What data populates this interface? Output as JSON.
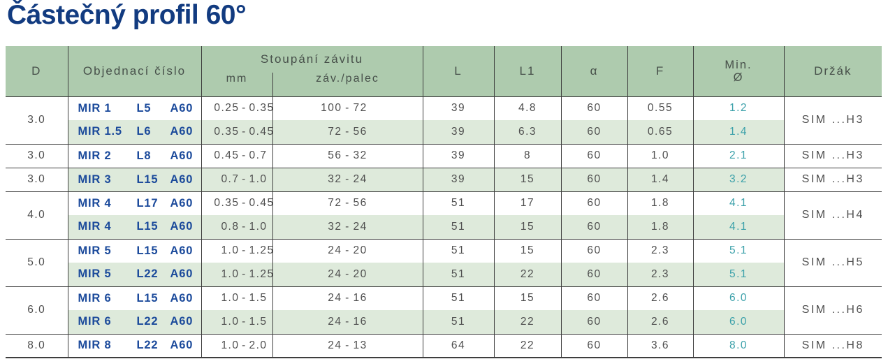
{
  "page": {
    "title": "Částečný profil 60°"
  },
  "colors": {
    "title_navy": "#123b80",
    "order_number_blue": "#1b4a9b",
    "header_green": "#aecbae",
    "row_alt_green": "#deeadb",
    "min_diameter_teal": "#3aa0a9",
    "body_text_gray": "#4e4e4e",
    "rule_dark": "#3e3e3e"
  },
  "table": {
    "headers": {
      "d": "D",
      "order": "Objednací číslo",
      "pitch_group": "Stoupání závitu",
      "pitch_mm": "mm",
      "pitch_tpi": "záv./palec",
      "l": "L",
      "l1": "L1",
      "alpha": "α",
      "f": "F",
      "min_dia_line1": "Min.",
      "min_dia_line2": "Ø",
      "holder": "Držák"
    },
    "range_dash": "-",
    "groups": [
      {
        "d": "3.0",
        "holder": "SIM ...H3",
        "rows": [
          {
            "order": [
              "MIR 1",
              "L5",
              "A60"
            ],
            "pitch_mm": [
              "0.25",
              "0.35"
            ],
            "pitch_tpi": [
              "100",
              "72"
            ],
            "l": "39",
            "l1": "4.8",
            "alpha": "60",
            "f": "0.55",
            "min_dia": "1.2"
          },
          {
            "order": [
              "MIR 1.5",
              "L6",
              "A60"
            ],
            "pitch_mm": [
              "0.35",
              "0.45"
            ],
            "pitch_tpi": [
              "72",
              "56"
            ],
            "l": "39",
            "l1": "6.3",
            "alpha": "60",
            "f": "0.65",
            "min_dia": "1.4"
          }
        ]
      },
      {
        "d": "3.0",
        "holder": "SIM ...H3",
        "rows": [
          {
            "order": [
              "MIR 2",
              "L8",
              "A60"
            ],
            "pitch_mm": [
              "0.45",
              "0.7"
            ],
            "pitch_tpi": [
              "56",
              "32"
            ],
            "l": "39",
            "l1": "8",
            "alpha": "60",
            "f": "1.0",
            "min_dia": "2.1"
          }
        ]
      },
      {
        "d": "3.0",
        "holder": "SIM ...H3",
        "rows": [
          {
            "order": [
              "MIR 3",
              "L15",
              "A60"
            ],
            "pitch_mm": [
              "0.7",
              "1.0"
            ],
            "pitch_tpi": [
              "32",
              "24"
            ],
            "l": "39",
            "l1": "15",
            "alpha": "60",
            "f": "1.4",
            "min_dia": "3.2"
          }
        ]
      },
      {
        "d": "4.0",
        "holder": "SIM ...H4",
        "rows": [
          {
            "order": [
              "MIR 4",
              "L17",
              "A60"
            ],
            "pitch_mm": [
              "0.35",
              "0.45"
            ],
            "pitch_tpi": [
              "72",
              "56"
            ],
            "l": "51",
            "l1": "17",
            "alpha": "60",
            "f": "1.8",
            "min_dia": "4.1"
          },
          {
            "order": [
              "MIR 4",
              "L15",
              "A60"
            ],
            "pitch_mm": [
              "0.8",
              "1.0"
            ],
            "pitch_tpi": [
              "32",
              "24"
            ],
            "l": "51",
            "l1": "15",
            "alpha": "60",
            "f": "1.8",
            "min_dia": "4.1"
          }
        ]
      },
      {
        "d": "5.0",
        "holder": "SIM ...H5",
        "rows": [
          {
            "order": [
              "MIR 5",
              "L15",
              "A60"
            ],
            "pitch_mm": [
              "1.0",
              "1.25"
            ],
            "pitch_tpi": [
              "24",
              "20"
            ],
            "l": "51",
            "l1": "15",
            "alpha": "60",
            "f": "2.3",
            "min_dia": "5.1"
          },
          {
            "order": [
              "MIR 5",
              "L22",
              "A60"
            ],
            "pitch_mm": [
              "1.0",
              "1.25"
            ],
            "pitch_tpi": [
              "24",
              "20"
            ],
            "l": "51",
            "l1": "22",
            "alpha": "60",
            "f": "2.3",
            "min_dia": "5.1"
          }
        ]
      },
      {
        "d": "6.0",
        "holder": "SIM ...H6",
        "rows": [
          {
            "order": [
              "MIR 6",
              "L15",
              "A60"
            ],
            "pitch_mm": [
              "1.0",
              "1.5"
            ],
            "pitch_tpi": [
              "24",
              "16"
            ],
            "l": "51",
            "l1": "15",
            "alpha": "60",
            "f": "2.6",
            "min_dia": "6.0"
          },
          {
            "order": [
              "MIR 6",
              "L22",
              "A60"
            ],
            "pitch_mm": [
              "1.0",
              "1.5"
            ],
            "pitch_tpi": [
              "24",
              "16"
            ],
            "l": "51",
            "l1": "22",
            "alpha": "60",
            "f": "2.6",
            "min_dia": "6.0"
          }
        ]
      },
      {
        "d": "8.0",
        "holder": "SIM ...H8",
        "rows": [
          {
            "order": [
              "MIR 8",
              "L22",
              "A60"
            ],
            "pitch_mm": [
              "1.0",
              "2.0"
            ],
            "pitch_tpi": [
              "24",
              "13"
            ],
            "l": "64",
            "l1": "22",
            "alpha": "60",
            "f": "3.6",
            "min_dia": "8.0"
          }
        ]
      }
    ]
  }
}
